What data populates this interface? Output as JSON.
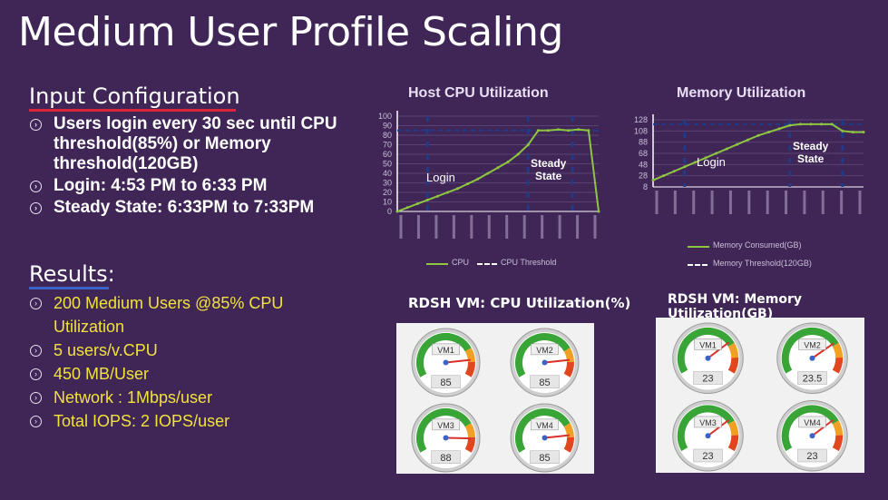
{
  "title": "Medium  User Profile Scaling",
  "input_config": {
    "heading": "Input Configuration",
    "items": [
      "Users login every 30 sec until CPU threshold(85%) or Memory threshold(120GB)",
      "Login: 4:53 PM to 6:33 PM",
      "Steady State: 6:33PM to 7:33PM"
    ]
  },
  "results": {
    "heading": "Results:",
    "items": [
      "200 Medium Users @85% CPU Utilization",
      "5 users/v.CPU",
      "450 MB/User",
      "Network : 1Mbps/user",
      "Total IOPS: 2 IOPS/user"
    ]
  },
  "colors": {
    "background": "#3f2656",
    "series": "#8ec63f",
    "threshold": "#1f3b8c",
    "gauge_green": "#3aa537",
    "gauge_needle": "#d9302a"
  },
  "charts": {
    "cpu": {
      "title": "Host CPU Utilization",
      "y_ticks": [
        "100",
        "90",
        "80",
        "70",
        "60",
        "50",
        "40",
        "30",
        "20",
        "10",
        "0"
      ],
      "phase_login": "Login",
      "phase_steady_1": "Steady",
      "phase_steady_2": "State",
      "legend_series": "CPU",
      "legend_threshold": "CPU Threshold"
    },
    "memory": {
      "title": "Memory Utilization",
      "y_ticks": [
        "128",
        "108",
        "88",
        "68",
        "48",
        "28",
        "8"
      ],
      "phase_login": "Login",
      "phase_steady_1": "Steady",
      "phase_steady_2": "State",
      "legend_series": "Memory Consumed(GB)",
      "legend_threshold": "Memory Threshold(120GB)"
    }
  },
  "chart_data": [
    {
      "type": "line",
      "title": "Host CPU Utilization",
      "ylim": [
        0,
        100
      ],
      "x": [
        0,
        5,
        10,
        15,
        20,
        25,
        30,
        35,
        40,
        45,
        50,
        55,
        60,
        65,
        70,
        75,
        80,
        85,
        90,
        95,
        100
      ],
      "series": [
        {
          "name": "CPU",
          "values": [
            0,
            4,
            8,
            12,
            16,
            20,
            24,
            29,
            34,
            40,
            46,
            52,
            60,
            70,
            85,
            85,
            86,
            85,
            86,
            85,
            0
          ]
        },
        {
          "name": "CPU Threshold",
          "values": [
            85,
            85,
            85,
            85,
            85,
            85,
            85,
            85,
            85,
            85,
            85,
            85,
            85,
            85,
            85,
            85,
            85,
            85,
            85,
            85,
            85
          ]
        }
      ],
      "grid": true,
      "legend": "bottom"
    },
    {
      "type": "line",
      "title": "Memory Utilization",
      "ylim": [
        8,
        128
      ],
      "x": [
        0,
        5,
        10,
        15,
        20,
        25,
        30,
        35,
        40,
        45,
        50,
        55,
        60,
        65,
        70,
        75,
        80,
        85,
        90,
        95,
        100
      ],
      "series": [
        {
          "name": "Memory Consumed(GB)",
          "values": [
            20,
            28,
            36,
            44,
            52,
            60,
            68,
            76,
            84,
            92,
            100,
            106,
            112,
            118,
            120,
            120,
            120,
            120,
            108,
            106,
            106
          ]
        },
        {
          "name": "Memory Threshold(120GB)",
          "values": [
            120,
            120,
            120,
            120,
            120,
            120,
            120,
            120,
            120,
            120,
            120,
            120,
            120,
            120,
            120,
            120,
            120,
            120,
            120,
            120,
            120
          ]
        }
      ],
      "grid": true,
      "legend": "bottom"
    }
  ],
  "vm_cpu": {
    "title": "RDSH VM: CPU Utilization(%)",
    "gauges": [
      {
        "label": "VM1",
        "value": "85",
        "level": 0.85
      },
      {
        "label": "VM2",
        "value": "85",
        "level": 0.85
      },
      {
        "label": "VM3",
        "value": "88",
        "level": 0.88
      },
      {
        "label": "VM4",
        "value": "85",
        "level": 0.85
      }
    ]
  },
  "vm_mem": {
    "title": "RDSH VM: Memory  Utilization(GB)",
    "gauges": [
      {
        "label": "VM1",
        "value": "23",
        "level": 0.72
      },
      {
        "label": "VM2",
        "value": "23.5",
        "level": 0.73
      },
      {
        "label": "VM3",
        "value": "23",
        "level": 0.72
      },
      {
        "label": "VM4",
        "value": "23",
        "level": 0.72
      }
    ]
  }
}
